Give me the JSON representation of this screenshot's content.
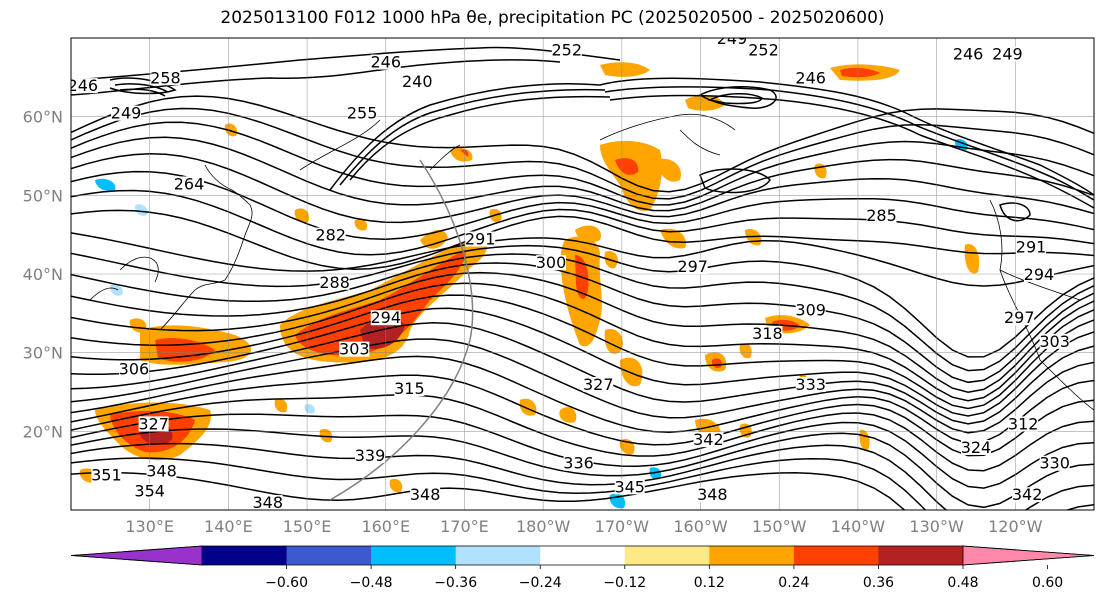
{
  "title": "2025013100 F012 1000 hPa θe, precipitation PC (2025020500 - 2025020600)",
  "map": {
    "lat_labels": [
      {
        "lat": 60,
        "text": "60°N"
      },
      {
        "lat": 50,
        "text": "50°N"
      },
      {
        "lat": 40,
        "text": "40°N"
      },
      {
        "lat": 30,
        "text": "30°N"
      },
      {
        "lat": 20,
        "text": "20°N"
      }
    ],
    "lon_labels": [
      {
        "lon": 130,
        "text": "130°E"
      },
      {
        "lon": 140,
        "text": "140°E"
      },
      {
        "lon": 150,
        "text": "150°E"
      },
      {
        "lon": 160,
        "text": "160°E"
      },
      {
        "lon": 170,
        "text": "170°E"
      },
      {
        "lon": 180,
        "text": "180°W"
      },
      {
        "lon": 190,
        "text": "170°W"
      },
      {
        "lon": 200,
        "text": "160°W"
      },
      {
        "lon": 210,
        "text": "150°W"
      },
      {
        "lon": 220,
        "text": "140°W"
      },
      {
        "lon": 230,
        "text": "130°W"
      },
      {
        "lon": 240,
        "text": "120°W"
      }
    ],
    "contour_labels": [
      {
        "text": "246",
        "lon": 121.5,
        "lat": 63.5
      },
      {
        "text": "258",
        "lon": 132,
        "lat": 64.5
      },
      {
        "text": "249",
        "lon": 127,
        "lat": 60.0
      },
      {
        "text": "255",
        "lon": 157,
        "lat": 60.0
      },
      {
        "text": "240",
        "lon": 164,
        "lat": 64.0
      },
      {
        "text": "246",
        "lon": 160,
        "lat": 66.5
      },
      {
        "text": "252",
        "lon": 183,
        "lat": 68.0
      },
      {
        "text": "249",
        "lon": 204,
        "lat": 69.5
      },
      {
        "text": "252",
        "lon": 208,
        "lat": 68.0
      },
      {
        "text": "246",
        "lon": 214,
        "lat": 64.5
      },
      {
        "text": "246",
        "lon": 234,
        "lat": 67.5
      },
      {
        "text": "249",
        "lon": 239,
        "lat": 67.5
      },
      {
        "text": "264",
        "lon": 135,
        "lat": 51.0
      },
      {
        "text": "282",
        "lon": 153,
        "lat": 44.5
      },
      {
        "text": "288",
        "lon": 153.5,
        "lat": 38.5
      },
      {
        "text": "291",
        "lon": 172,
        "lat": 44.0
      },
      {
        "text": "300",
        "lon": 181,
        "lat": 41.0
      },
      {
        "text": "294",
        "lon": 160,
        "lat": 34.0
      },
      {
        "text": "303",
        "lon": 156,
        "lat": 30.0
      },
      {
        "text": "297",
        "lon": 199,
        "lat": 40.5
      },
      {
        "text": "285",
        "lon": 223,
        "lat": 47.0
      },
      {
        "text": "309",
        "lon": 214,
        "lat": 35.0
      },
      {
        "text": "318",
        "lon": 208.5,
        "lat": 32.0
      },
      {
        "text": "291",
        "lon": 242,
        "lat": 43.0
      },
      {
        "text": "294",
        "lon": 243,
        "lat": 39.5
      },
      {
        "text": "297",
        "lon": 240.5,
        "lat": 34.0
      },
      {
        "text": "303",
        "lon": 245,
        "lat": 31.0
      },
      {
        "text": "315",
        "lon": 163,
        "lat": 25.0
      },
      {
        "text": "327",
        "lon": 187,
        "lat": 25.5
      },
      {
        "text": "333",
        "lon": 214,
        "lat": 25.5
      },
      {
        "text": "306",
        "lon": 128,
        "lat": 27.5
      },
      {
        "text": "327",
        "lon": 130.5,
        "lat": 20.5
      },
      {
        "text": "342",
        "lon": 201,
        "lat": 18.5
      },
      {
        "text": "339",
        "lon": 158,
        "lat": 16.5
      },
      {
        "text": "336",
        "lon": 184.5,
        "lat": 15.5
      },
      {
        "text": "351",
        "lon": 124.5,
        "lat": 14.0
      },
      {
        "text": "348",
        "lon": 131.5,
        "lat": 14.5
      },
      {
        "text": "354",
        "lon": 130,
        "lat": 12.0
      },
      {
        "text": "348",
        "lon": 145,
        "lat": 10.5
      },
      {
        "text": "348",
        "lon": 165,
        "lat": 11.5
      },
      {
        "text": "345",
        "lon": 191,
        "lat": 12.5
      },
      {
        "text": "348",
        "lon": 201.5,
        "lat": 11.5
      },
      {
        "text": "324",
        "lon": 235,
        "lat": 17.5
      },
      {
        "text": "312",
        "lon": 241,
        "lat": 20.5
      },
      {
        "text": "330",
        "lon": 245,
        "lat": 15.5
      },
      {
        "text": "342",
        "lon": 241.5,
        "lat": 11.5
      }
    ]
  },
  "colorbar": {
    "colors": [
      "#9932cc",
      "#00008b",
      "#3a5acd",
      "#00bfff",
      "#b0e2ff",
      "#ffffff",
      "#ffe888",
      "#ffa500",
      "#ff4000",
      "#b22222",
      "#ff88aa"
    ],
    "ticks": [
      "−0.60",
      "−0.48",
      "−0.36",
      "−0.24",
      "−0.12",
      "0.12",
      "0.24",
      "0.36",
      "0.48",
      "0.60"
    ]
  },
  "legend_colors": {
    "light": "#ffa500",
    "medium": "#ff4000",
    "strong": "#b22222",
    "negative": "#00bfff"
  }
}
